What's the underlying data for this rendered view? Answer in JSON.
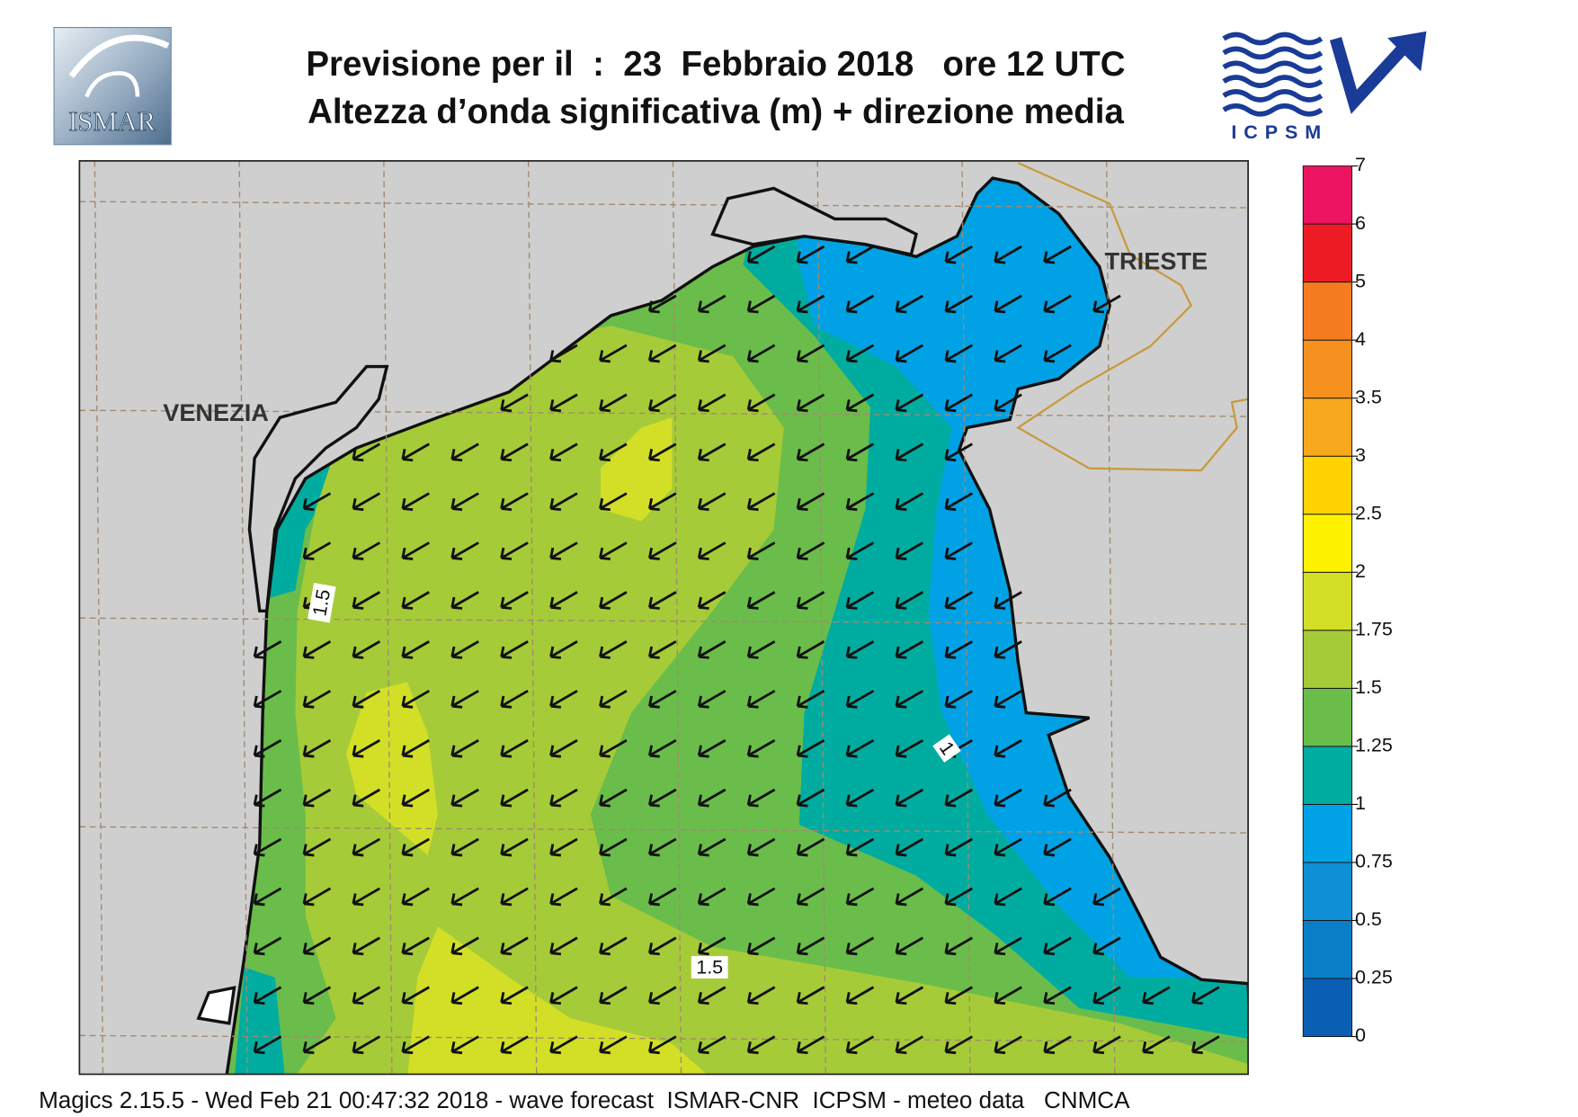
{
  "header": {
    "title": "Previsione per il  :  23  Febbraio 2018   ore 12 UTC",
    "subtitle": "Altezza d’onda significativa (m) + direzione media",
    "logo_left": "ISMAR",
    "logo_right": "ICPSM"
  },
  "map": {
    "places": [
      "VENEZIA",
      "TRIESTE"
    ],
    "contour_labels": [
      "1.5",
      "1",
      "1.5"
    ]
  },
  "colorbar": {
    "ticks": [
      0,
      0.25,
      0.5,
      0.75,
      1,
      1.25,
      1.5,
      1.75,
      2,
      2.5,
      3,
      3.5,
      4,
      5,
      6,
      7
    ],
    "colors": [
      "#0a5fb4",
      "#0b7ec8",
      "#0e8fd6",
      "#00a2e5",
      "#00aca0",
      "#6abd4a",
      "#a6cb38",
      "#d3df27",
      "#fff200",
      "#ffd200",
      "#f8a81c",
      "#f6901e",
      "#f47b20",
      "#ed1c24",
      "#ec1460"
    ]
  },
  "footer": "Magics 2.15.5 - Wed Feb 21 00:47:32 2018 - wave forecast  ISMAR-CNR  ICPSM - meteo data   CNMCA"
}
